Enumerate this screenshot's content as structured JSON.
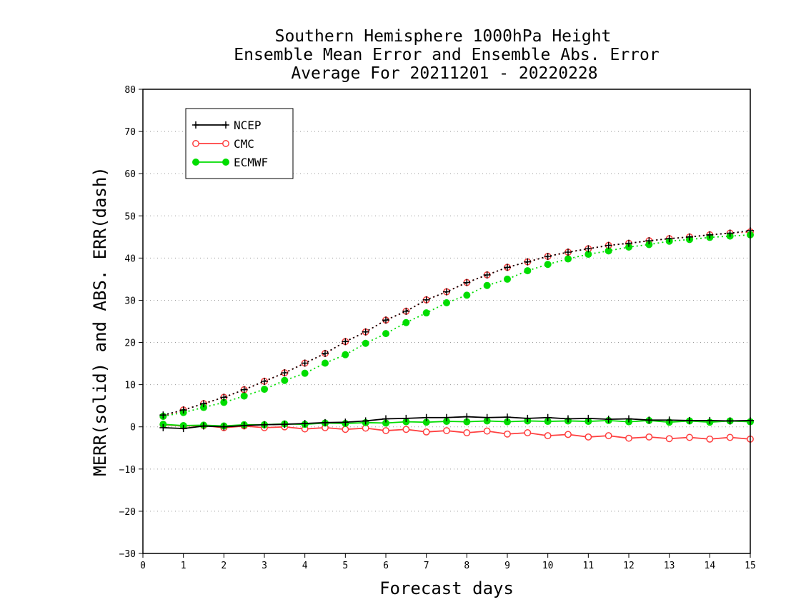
{
  "chart_data": {
    "type": "line",
    "title": [
      "Southern Hemisphere 1000hPa Height",
      "Ensemble Mean Error and Ensemble Abs. Error",
      "Average For 20211201 - 20220228"
    ],
    "xlabel": "Forecast days",
    "ylabel": "MERR(solid) and ABS. ERR(dash)",
    "xlim": [
      0,
      15
    ],
    "ylim": [
      -30,
      80
    ],
    "xticks": [
      "0",
      "1",
      "2",
      "3",
      "4",
      "5",
      "6",
      "7",
      "8",
      "9",
      "10",
      "11",
      "12",
      "13",
      "14",
      "15"
    ],
    "yticks": [
      "−30",
      "−20",
      "−10",
      "0",
      "10",
      "20",
      "30",
      "40",
      "50",
      "60",
      "70",
      "80"
    ],
    "grid": "horizontal dotted",
    "legend_position": "top-left",
    "x": [
      0.5,
      1,
      1.5,
      2,
      2.5,
      3,
      3.5,
      4,
      4.5,
      5,
      5.5,
      6,
      6.5,
      7,
      7.5,
      8,
      8.5,
      9,
      9.5,
      10,
      10.5,
      11,
      11.5,
      12,
      12.5,
      13,
      13.5,
      14,
      14.5,
      15
    ],
    "series": [
      {
        "name": "NCEP",
        "color": "#000000",
        "marker": "plus",
        "merr": [
          -0.2,
          -0.4,
          0.2,
          0.0,
          0.3,
          0.5,
          0.6,
          0.8,
          1.0,
          1.1,
          1.4,
          1.9,
          2.0,
          2.2,
          2.2,
          2.4,
          2.2,
          2.3,
          2.0,
          2.2,
          1.9,
          2.0,
          1.8,
          1.9,
          1.6,
          1.6,
          1.5,
          1.5,
          1.4,
          1.5
        ],
        "abs_err": [
          2.8,
          4.0,
          5.5,
          7.0,
          8.8,
          10.8,
          12.8,
          15.1,
          17.4,
          20.2,
          22.5,
          25.3,
          27.4,
          30.1,
          32.0,
          34.2,
          36.0,
          37.8,
          39.1,
          40.4,
          41.4,
          42.2,
          43.0,
          43.5,
          44.1,
          44.6,
          45.0,
          45.5,
          45.9,
          46.5
        ]
      },
      {
        "name": "CMC",
        "color": "#ff4040",
        "marker": "open-circle",
        "merr": [
          0.5,
          0.2,
          0.3,
          -0.2,
          0.2,
          -0.2,
          0.0,
          -0.5,
          -0.2,
          -0.6,
          -0.3,
          -0.9,
          -0.6,
          -1.2,
          -0.9,
          -1.4,
          -1.0,
          -1.7,
          -1.4,
          -2.1,
          -1.8,
          -2.4,
          -2.1,
          -2.7,
          -2.4,
          -2.8,
          -2.5,
          -2.9,
          -2.5,
          -2.9
        ],
        "abs_err": [
          2.5,
          4.0,
          5.5,
          7.0,
          8.8,
          10.8,
          12.8,
          15.1,
          17.4,
          20.2,
          22.5,
          25.3,
          27.4,
          30.1,
          32.0,
          34.2,
          36.0,
          37.8,
          39.1,
          40.4,
          41.4,
          42.2,
          43.0,
          43.5,
          44.1,
          44.6,
          45.0,
          45.5,
          45.9,
          46.2
        ]
      },
      {
        "name": "ECMWF",
        "color": "#00dd00",
        "marker": "filled-circle",
        "merr": [
          0.6,
          0.3,
          0.4,
          0.2,
          0.5,
          0.5,
          0.7,
          0.6,
          0.9,
          0.8,
          1.0,
          0.9,
          1.2,
          1.1,
          1.3,
          1.2,
          1.4,
          1.2,
          1.4,
          1.3,
          1.4,
          1.3,
          1.5,
          1.2,
          1.5,
          1.1,
          1.4,
          1.1,
          1.4,
          1.2
        ],
        "abs_err": [
          2.5,
          3.4,
          4.6,
          5.8,
          7.3,
          8.9,
          11.0,
          12.7,
          15.1,
          17.1,
          19.8,
          22.1,
          24.7,
          27.0,
          29.4,
          31.2,
          33.5,
          35.0,
          37.0,
          38.5,
          39.8,
          40.9,
          41.7,
          42.6,
          43.2,
          44.0,
          44.4,
          44.9,
          45.2,
          45.5
        ]
      }
    ]
  }
}
